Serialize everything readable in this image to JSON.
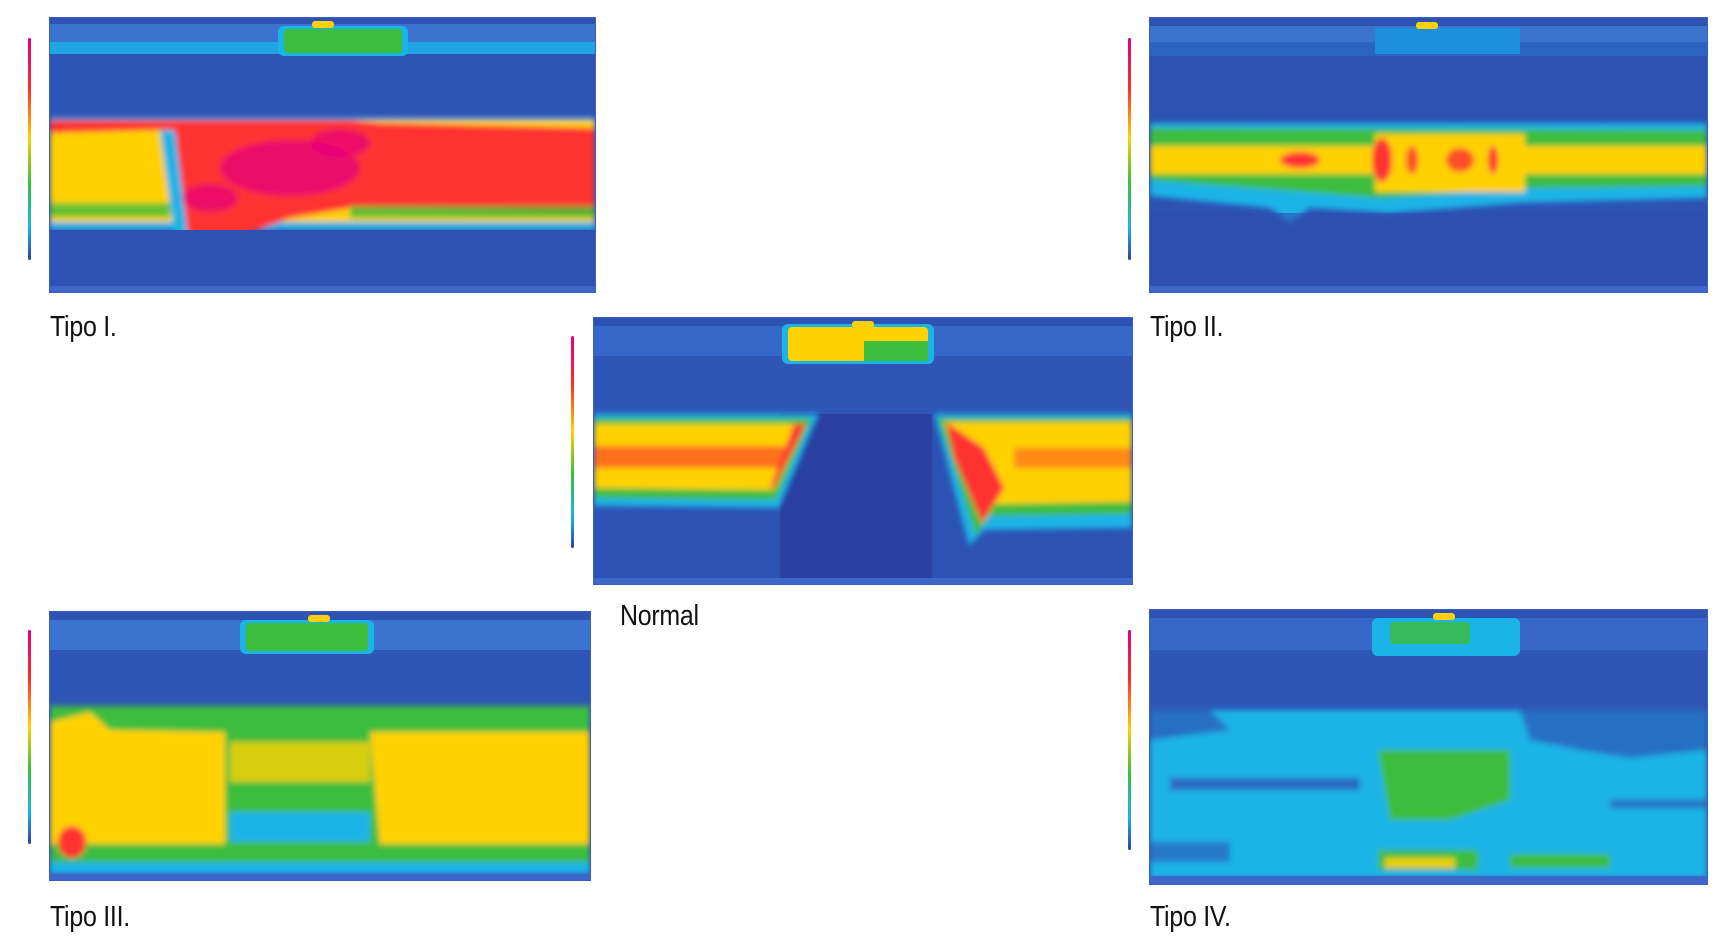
{
  "figure": {
    "panels": [
      {
        "id": "tipo-1",
        "caption": "Tipo I."
      },
      {
        "id": "tipo-2",
        "caption": "Tipo II."
      },
      {
        "id": "normal",
        "caption": "Normal"
      },
      {
        "id": "tipo-3",
        "caption": "Tipo III."
      },
      {
        "id": "tipo-4",
        "caption": "Tipo IV."
      }
    ],
    "colorscale": [
      "#e6007e",
      "#ff2a2a",
      "#ffd100",
      "#3bbf3b",
      "#1ab4e6",
      "#2b3fb0"
    ]
  }
}
